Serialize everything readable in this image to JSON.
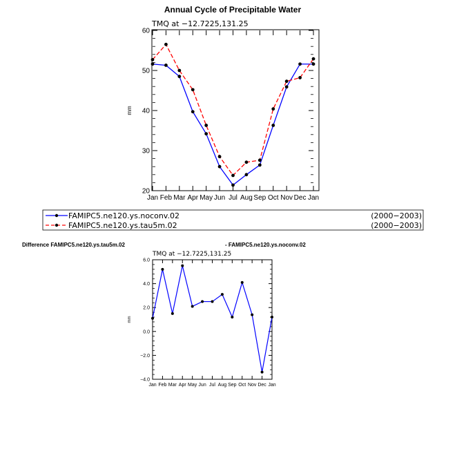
{
  "chart_data": [
    {
      "type": "line",
      "title": "Annual Cycle of Precipitable Water",
      "subtitle": "TMQ at −12.7225,131.25",
      "ylabel": "mm",
      "xlabel": "",
      "categories": [
        "Jan",
        "Feb",
        "Mar",
        "Apr",
        "May",
        "Jun",
        "Jul",
        "Aug",
        "Sep",
        "Oct",
        "Nov",
        "Dec",
        "Jan"
      ],
      "ylim": [
        20,
        60
      ],
      "yticks": [
        "20",
        "30",
        "40",
        "50",
        "60"
      ],
      "grid": false,
      "series": [
        {
          "name": "FAMIPC5.ne120.ys.noconv.02",
          "period": "(2000−2003)",
          "color": "#0000ff",
          "dash": "solid",
          "values": [
            51.6,
            51.3,
            48.5,
            39.7,
            34.2,
            26.0,
            21.4,
            24.0,
            26.4,
            36.3,
            45.9,
            51.6,
            51.6
          ]
        },
        {
          "name": "FAMIPC5.ne120.ys.tau5m.02",
          "period": "(2000−2003)",
          "color": "#ff0000",
          "dash": "dashed",
          "values": [
            52.7,
            56.5,
            50.0,
            45.2,
            36.3,
            28.5,
            23.8,
            27.1,
            27.6,
            40.4,
            47.3,
            48.2,
            52.9
          ]
        }
      ]
    },
    {
      "type": "line",
      "title": "Difference FAMIPC5.ne120.ys.tau5m.02",
      "title_right": "- FAMIPC5.ne120.ys.noconv.02",
      "subtitle": "TMQ at −12.7225,131.25",
      "ylabel": "mm",
      "xlabel": "",
      "categories": [
        "Jan",
        "Feb",
        "Mar",
        "Apr",
        "May",
        "Jun",
        "Jul",
        "Aug",
        "Sep",
        "Oct",
        "Nov",
        "Dec",
        "Jan"
      ],
      "ylim": [
        -4,
        6
      ],
      "yticks": [
        "−4.0",
        "−2.0",
        "0.0",
        "2.0",
        "4.0",
        "6.0"
      ],
      "grid": false,
      "series": [
        {
          "color": "#0000ff",
          "values": [
            1.1,
            5.2,
            1.5,
            5.5,
            2.1,
            2.5,
            2.5,
            3.1,
            1.2,
            4.1,
            1.4,
            -3.4,
            1.2
          ]
        }
      ]
    }
  ]
}
